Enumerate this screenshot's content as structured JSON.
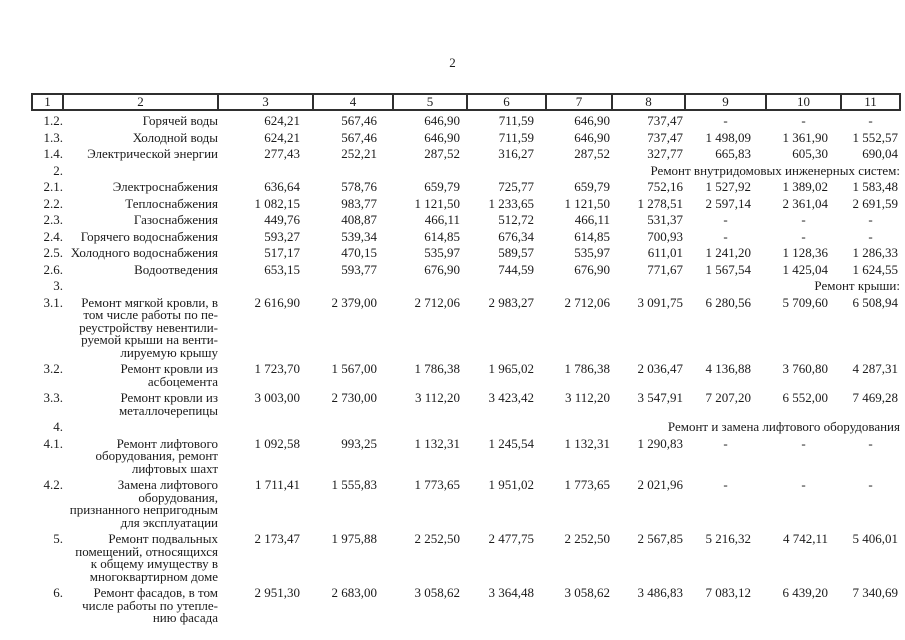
{
  "page": {
    "number": "2"
  },
  "colors": {
    "text": "#1b1b1b",
    "border": "#2f2f2f",
    "background": "#ffffff"
  },
  "table": {
    "header": [
      "1",
      "2",
      "3",
      "4",
      "5",
      "6",
      "7",
      "8",
      "9",
      "10",
      "11"
    ],
    "rows": [
      {
        "num": "1.2.",
        "label": "Горячей воды",
        "section": false,
        "values": [
          "624,21",
          "567,46",
          "646,90",
          "711,59",
          "646,90",
          "737,47",
          "-",
          "-",
          "-"
        ]
      },
      {
        "num": "1.3.",
        "label": "Холодной воды",
        "section": false,
        "values": [
          "624,21",
          "567,46",
          "646,90",
          "711,59",
          "646,90",
          "737,47",
          "1 498,09",
          "1 361,90",
          "1 552,57"
        ]
      },
      {
        "num": "1.4.",
        "label": "Электрической энергии",
        "section": false,
        "values": [
          "277,43",
          "252,21",
          "287,52",
          "316,27",
          "287,52",
          "327,77",
          "665,83",
          "605,30",
          "690,04"
        ]
      },
      {
        "num": "2.",
        "label": "Ремонт внутридомовых инженерных систем:",
        "section": true,
        "values": []
      },
      {
        "num": "2.1.",
        "label": "Электроснабжения",
        "section": false,
        "values": [
          "636,64",
          "578,76",
          "659,79",
          "725,77",
          "659,79",
          "752,16",
          "1 527,92",
          "1 389,02",
          "1 583,48"
        ]
      },
      {
        "num": "2.2.",
        "label": "Теплоснабжения",
        "section": false,
        "values": [
          "1 082,15",
          "983,77",
          "1 121,50",
          "1 233,65",
          "1 121,50",
          "1 278,51",
          "2 597,14",
          "2 361,04",
          "2 691,59"
        ]
      },
      {
        "num": "2.3.",
        "label": "Газоснабжения",
        "section": false,
        "values": [
          "449,76",
          "408,87",
          "466,11",
          "512,72",
          "466,11",
          "531,37",
          "-",
          "-",
          "-"
        ]
      },
      {
        "num": "2.4.",
        "label": "Горячего водоснабжения",
        "section": false,
        "values": [
          "593,27",
          "539,34",
          "614,85",
          "676,34",
          "614,85",
          "700,93",
          "-",
          "-",
          "-"
        ]
      },
      {
        "num": "2.5.",
        "label": "Холодного водоснабжения",
        "section": false,
        "values": [
          "517,17",
          "470,15",
          "535,97",
          "589,57",
          "535,97",
          "611,01",
          "1 241,20",
          "1 128,36",
          "1 286,33"
        ]
      },
      {
        "num": "2.6.",
        "label": "Водоотведения",
        "section": false,
        "values": [
          "653,15",
          "593,77",
          "676,90",
          "744,59",
          "676,90",
          "771,67",
          "1 567,54",
          "1 425,04",
          "1 624,55"
        ]
      },
      {
        "num": "3.",
        "label": "Ремонт крыши:",
        "section": true,
        "values": []
      },
      {
        "num": "3.1.",
        "label": "Ремонт мягкой кровли, в\nтом числе работы по пе-\nреустройству невентили-\nруемой крыши на венти-\nлируемую крышу",
        "section": false,
        "values": [
          "2 616,90",
          "2 379,00",
          "2 712,06",
          "2 983,27",
          "2 712,06",
          "3 091,75",
          "6 280,56",
          "5 709,60",
          "6 508,94"
        ]
      },
      {
        "num": "3.2.",
        "label": "Ремонт кровли из\nасбоцемента",
        "section": false,
        "values": [
          "1 723,70",
          "1 567,00",
          "1 786,38",
          "1 965,02",
          "1 786,38",
          "2 036,47",
          "4 136,88",
          "3 760,80",
          "4 287,31"
        ]
      },
      {
        "num": "3.3.",
        "label": "Ремонт кровли из\nметаллочерепицы",
        "section": false,
        "values": [
          "3 003,00",
          "2 730,00",
          "3 112,20",
          "3 423,42",
          "3 112,20",
          "3 547,91",
          "7 207,20",
          "6 552,00",
          "7 469,28"
        ]
      },
      {
        "num": "4.",
        "label": "Ремонт и замена лифтового оборудования",
        "section": true,
        "values": []
      },
      {
        "num": "4.1.",
        "label": "Ремонт лифтового\nоборудования, ремонт\nлифтовых шахт",
        "section": false,
        "values": [
          "1 092,58",
          "993,25",
          "1 132,31",
          "1 245,54",
          "1 132,31",
          "1 290,83",
          "-",
          "-",
          "-"
        ]
      },
      {
        "num": "4.2.",
        "label": "Замена лифтового\nоборудования,\nпризнанного непригодным\nдля эксплуатации",
        "section": false,
        "values": [
          "1 711,41",
          "1 555,83",
          "1 773,65",
          "1 951,02",
          "1 773,65",
          "2 021,96",
          "-",
          "-",
          "-"
        ]
      },
      {
        "num": "5.",
        "label": "Ремонт подвальных\nпомещений, относящихся\nк общему имуществу в\nмногоквартирном доме",
        "section": false,
        "values": [
          "2 173,47",
          "1 975,88",
          "2 252,50",
          "2 477,75",
          "2 252,50",
          "2 567,85",
          "5 216,32",
          "4 742,11",
          "5 406,01"
        ]
      },
      {
        "num": "6.",
        "label": "Ремонт фасадов, в том\nчисле работы по утепле-\nнию фасада",
        "section": false,
        "values": [
          "2 951,30",
          "2 683,00",
          "3 058,62",
          "3 364,48",
          "3 058,62",
          "3 486,83",
          "7 083,12",
          "6 439,20",
          "7 340,69"
        ]
      }
    ]
  }
}
